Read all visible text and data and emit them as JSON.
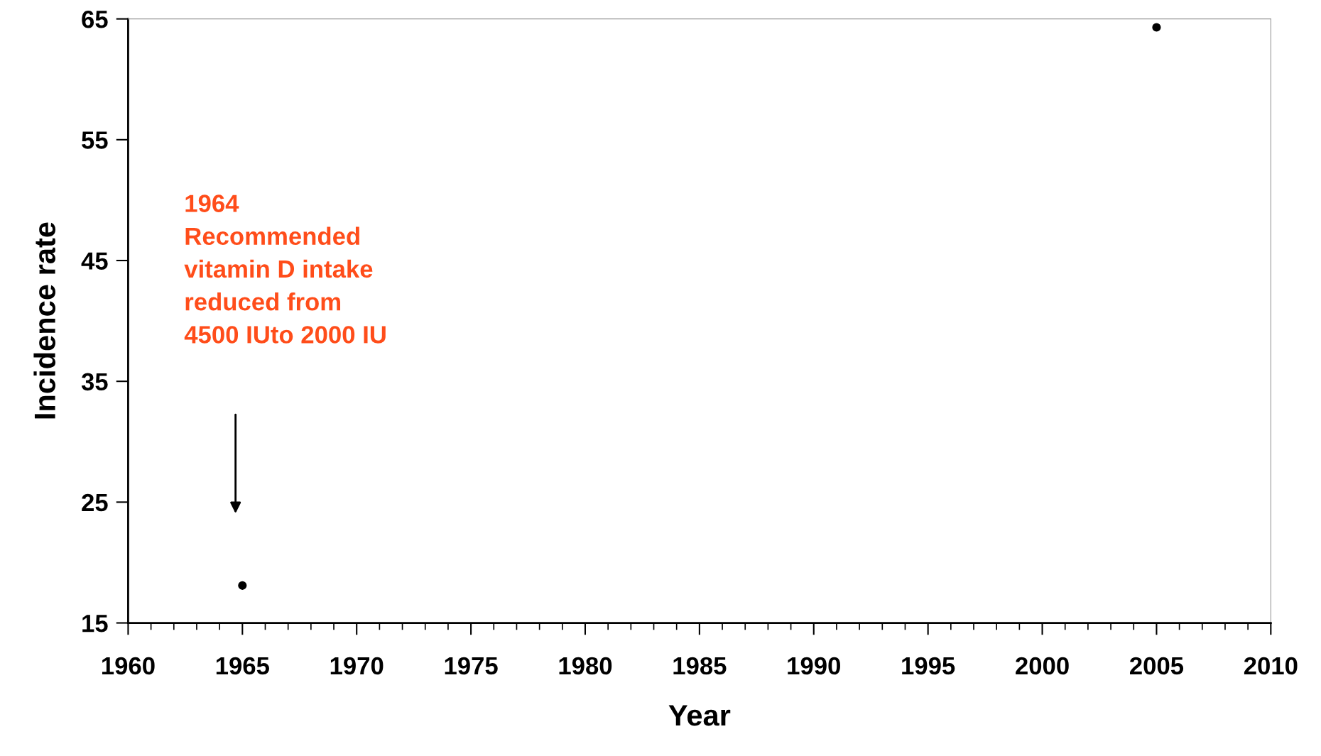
{
  "chart_data": {
    "type": "scatter",
    "xlabel": "Year",
    "ylabel": "Incidence rate",
    "x": [
      1965,
      2005
    ],
    "values": [
      18.1,
      64.3
    ],
    "color": "#000000",
    "marker": "circle",
    "xlim": [
      1960,
      2010
    ],
    "xticks": [
      1960,
      1965,
      1970,
      1975,
      1980,
      1985,
      1990,
      1995,
      2000,
      2005,
      2010
    ],
    "ylim": [
      15,
      65
    ],
    "yticks": [
      15,
      25,
      35,
      45,
      55,
      65
    ],
    "grid": false,
    "legend": false,
    "annotations": [
      "1964\nRecommended\nvitamin D intake\nreduced from\n4500 IUto 2000 IU"
    ]
  }
}
